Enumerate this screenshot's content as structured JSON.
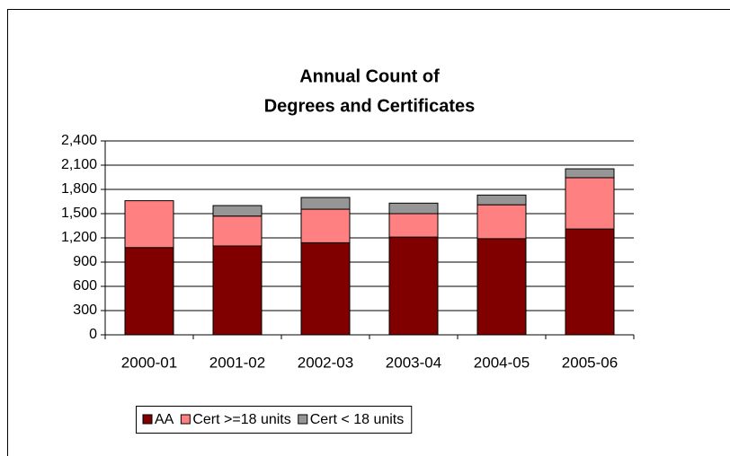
{
  "chart_data": {
    "type": "stacked_bar",
    "title": [
      "Annual Count of",
      "Degrees and Certificates"
    ],
    "categories": [
      "2000-01",
      "2001-02",
      "2002-03",
      "2003-04",
      "2004-05",
      "2005-06"
    ],
    "series": [
      {
        "name": "AA",
        "color": "#800000",
        "values": [
          1080,
          1100,
          1140,
          1210,
          1190,
          1310
        ]
      },
      {
        "name": "Cert >=18 units",
        "color": "#ff8080",
        "values": [
          580,
          370,
          415,
          290,
          420,
          635
        ]
      },
      {
        "name": "Cert < 18 units",
        "color": "#969696",
        "values": [
          0,
          130,
          145,
          130,
          120,
          110
        ]
      }
    ],
    "ylim": [
      0,
      2400
    ],
    "yticks": [
      0,
      300,
      600,
      900,
      {
        "value": 1200,
        "label": "1,200"
      },
      {
        "value": 1500,
        "label": "1,500"
      },
      {
        "value": 1800,
        "label": "1,800"
      },
      {
        "value": 2100,
        "label": "2,100"
      },
      {
        "value": 2400,
        "label": "2,400"
      }
    ],
    "grid": true,
    "legend": "bottom"
  }
}
